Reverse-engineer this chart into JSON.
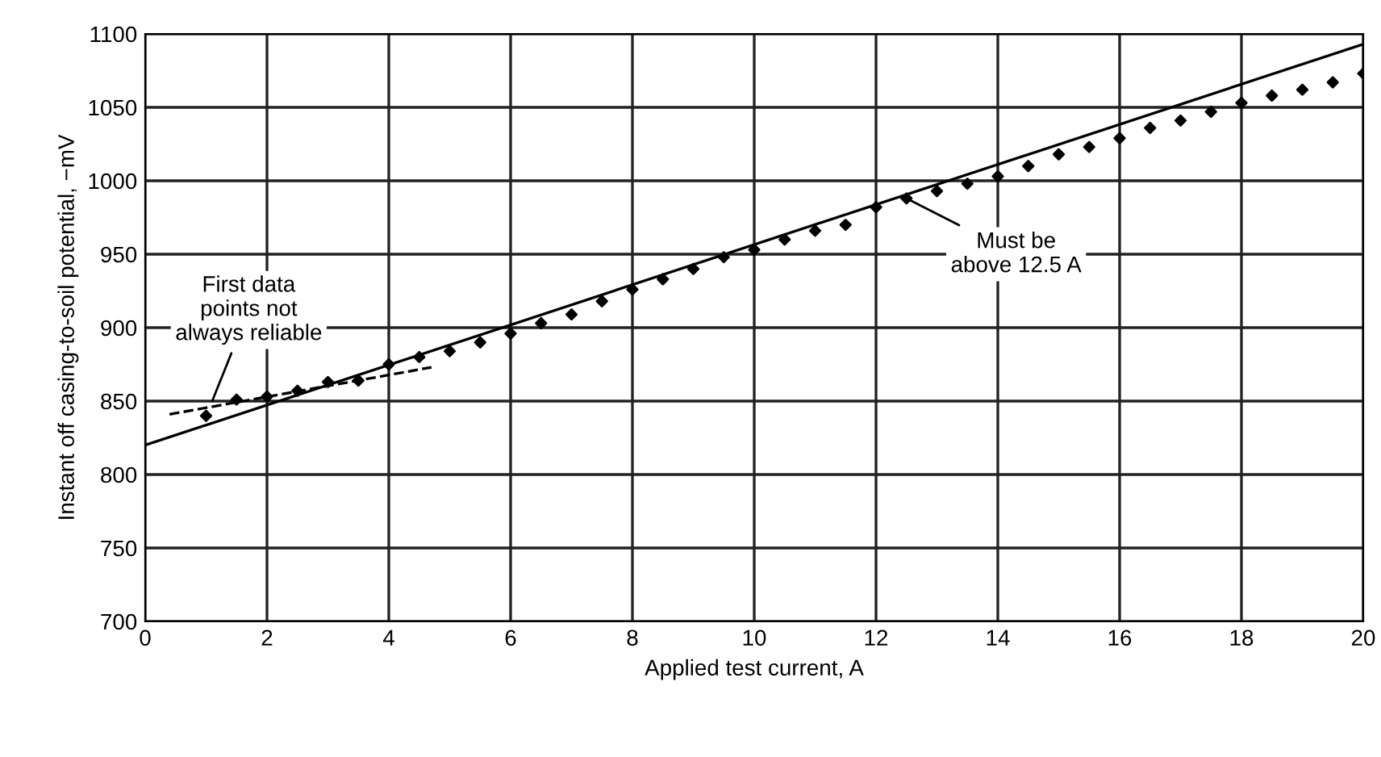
{
  "chart_data": {
    "type": "scatter",
    "xlabel": "Applied test current, A",
    "ylabel": "Instant off casing-to-soil potential, −mV",
    "xlim": [
      0,
      20
    ],
    "ylim": [
      700,
      1100
    ],
    "xticks": [
      0,
      2,
      4,
      6,
      8,
      10,
      12,
      14,
      16,
      18,
      20
    ],
    "yticks": [
      700,
      750,
      800,
      850,
      900,
      950,
      1000,
      1050,
      1100
    ],
    "grid": true,
    "legend": false,
    "series": [
      {
        "marker": "diamond",
        "color": "#000000",
        "x": [
          1,
          1.5,
          2,
          2.5,
          3,
          3.5,
          4,
          4.5,
          5,
          5.5,
          6,
          6.5,
          7,
          7.5,
          8,
          8.5,
          9,
          9.5,
          10,
          10.5,
          11,
          11.5,
          12,
          12.5,
          13,
          13.5,
          14,
          14.5,
          15,
          15.5,
          16,
          16.5,
          17,
          17.5,
          18,
          18.5,
          19,
          19.5,
          20
        ],
        "values": [
          840,
          851,
          853,
          857,
          863,
          864,
          875,
          880,
          884,
          890,
          896,
          903,
          909,
          918,
          926,
          933,
          940,
          948,
          953,
          960,
          966,
          970,
          982,
          988,
          993,
          998,
          1003,
          1010,
          1018,
          1023,
          1029,
          1036,
          1041,
          1047,
          1053,
          1058,
          1062,
          1067,
          1073
        ]
      },
      {
        "type": "line",
        "line_style": "solid",
        "color": "#000000",
        "x": [
          0,
          20
        ],
        "values": [
          820,
          1093
        ]
      },
      {
        "type": "line",
        "line_style": "dashed",
        "color": "#000000",
        "x": [
          0.4,
          4.7
        ],
        "values": [
          841,
          873
        ]
      }
    ],
    "annotations": [
      {
        "text": "First data\npoints not\nalways reliable",
        "x": 1.1,
        "y": 850
      },
      {
        "text": "Must be\nabove 12.5 A",
        "x": 12.5,
        "y": 988
      }
    ]
  }
}
